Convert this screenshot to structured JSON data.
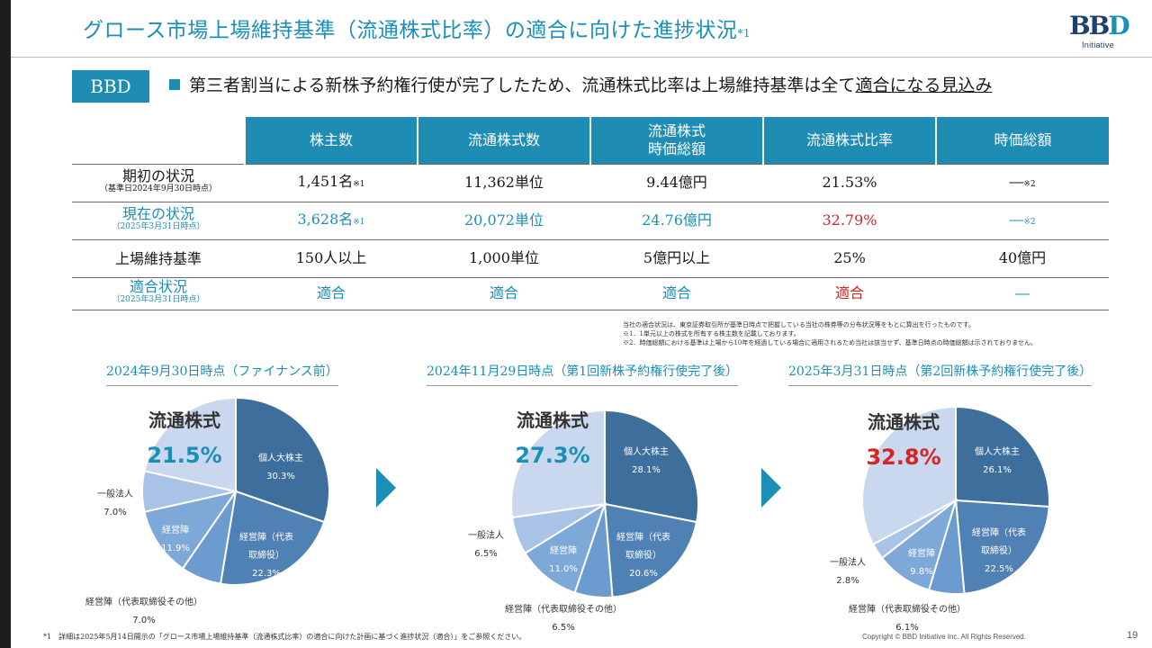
{
  "title": "グロース市場上場維持基準（流通株式比率）の適合に向けた進捗状況",
  "title_sup": "*1",
  "logo": {
    "mark_a": "BB",
    "mark_b": "D",
    "sub": "Initiative"
  },
  "badge": "BBD",
  "headline": {
    "text": "第三者割当による新株予約権行使が完了したため、流通株式比率は上場維持基準は全て",
    "underlined": "適合になる見込み"
  },
  "table": {
    "headers": [
      "株主数",
      "流通株式数",
      "流通株式\n時価総額",
      "流通株式比率",
      "時価総額"
    ],
    "rows": [
      {
        "label": "期初の状況",
        "sublabel": "（基準日2024年9月30日時点）",
        "cells": [
          "1,451名",
          "11,362単位",
          "9.44億円",
          "21.53%",
          "―"
        ],
        "cell_notes": [
          "※1",
          "",
          "",
          "",
          "※2"
        ]
      },
      {
        "label": "現在の状況",
        "sublabel": "（2025年3月31日時点）",
        "cells": [
          "3,628名",
          "20,072単位",
          "24.76億円",
          "32.79%",
          "―"
        ],
        "cell_notes": [
          "※1",
          "",
          "",
          "",
          "※2"
        ]
      },
      {
        "label": "上場維持基準",
        "sublabel": "",
        "cells": [
          "150人以上",
          "1,000単位",
          "5億円以上",
          "25%",
          "40億円"
        ]
      },
      {
        "label": "適合状況",
        "sublabel": "（2025年3月31日時点）",
        "cells": [
          "適合",
          "適合",
          "適合",
          "適合",
          "―"
        ]
      }
    ]
  },
  "notes": [
    "当社の適合状況は、東京証券取引所が基準日時点で把握している当社の株券等の分布状況等をもとに算出を行ったものです。",
    "※1．1単元以上の株式を所有する株主数を記載しております。",
    "※2．時価総額における基準は上場から10年を経過している場合に適用されるため当社は該当せず、基準日時点の時価総額は示されておりません。"
  ],
  "periods": [
    "2024年9月30日時点（ファイナンス前）",
    "2024年11月29日時点（第1回新株予約権行使完了後）",
    "2025年3月31日時点（第2回新株予約権行使完了後）"
  ],
  "float_label": "流通株式",
  "charts": [
    {
      "float_pct": "21.5%",
      "float_color": "#1a8fb8",
      "slices": [
        {
          "name": "個人大株主",
          "value": 30.3,
          "label": "30.3%",
          "color": "#3d6e9c"
        },
        {
          "name": "経営陣（代表取締役）",
          "value": 22.3,
          "label": "22.3%",
          "color": "#4f81b5"
        },
        {
          "name": "経営陣（代表取締役その他）",
          "value": 7.0,
          "label": "7.0%",
          "color": "#6b9bcf"
        },
        {
          "name": "経営陣",
          "value": 11.9,
          "label": "11.9%",
          "color": "#7ea8d8"
        },
        {
          "name": "一般法人",
          "value": 7.0,
          "label": "7.0%",
          "color": "#a8c3e6"
        },
        {
          "name": "流通株式",
          "value": 21.5,
          "label": "",
          "color": "#c9d8ef"
        }
      ]
    },
    {
      "float_pct": "27.3%",
      "float_color": "#1a8fb8",
      "slices": [
        {
          "name": "個人大株主",
          "value": 28.1,
          "label": "28.1%",
          "color": "#3d6e9c"
        },
        {
          "name": "経営陣（代表取締役）",
          "value": 20.6,
          "label": "20.6%",
          "color": "#4f81b5"
        },
        {
          "name": "経営陣（代表取締役その他）",
          "value": 6.5,
          "label": "6.5%",
          "color": "#6b9bcf"
        },
        {
          "name": "経営陣",
          "value": 11.0,
          "label": "11.0%",
          "color": "#7ea8d8"
        },
        {
          "name": "一般法人",
          "value": 6.5,
          "label": "6.5%",
          "color": "#a8c3e6"
        },
        {
          "name": "流通株式",
          "value": 27.3,
          "label": "",
          "color": "#c9d8ef"
        }
      ]
    },
    {
      "float_pct": "32.8%",
      "float_color": "#d42424",
      "slices": [
        {
          "name": "個人大株主",
          "value": 26.1,
          "label": "26.1%",
          "color": "#3d6e9c"
        },
        {
          "name": "経営陣（代表取締役）",
          "value": 22.5,
          "label": "22.5%",
          "color": "#4f81b5"
        },
        {
          "name": "経営陣（代表取締役その他）",
          "value": 6.1,
          "label": "6.1%",
          "color": "#6b9bcf"
        },
        {
          "name": "経営陣",
          "value": 9.8,
          "label": "9.8%",
          "color": "#7ea8d8"
        },
        {
          "name": "一般法人",
          "value": 2.8,
          "label": "2.8%",
          "color": "#a8c3e6"
        },
        {
          "name": "流通株式",
          "value": 32.8,
          "label": "",
          "color": "#c9d8ef"
        }
      ]
    }
  ],
  "footnote": "*1　詳細は2025年5月14日開示の「グロース市場上場維持基準（流通株式比率）の適合に向けた計画に基づく進捗状況（適合）」をご参照ください。",
  "copyright": "Copyright © BBD Initiative Inc. All Rights Reserved.",
  "page": "19"
}
